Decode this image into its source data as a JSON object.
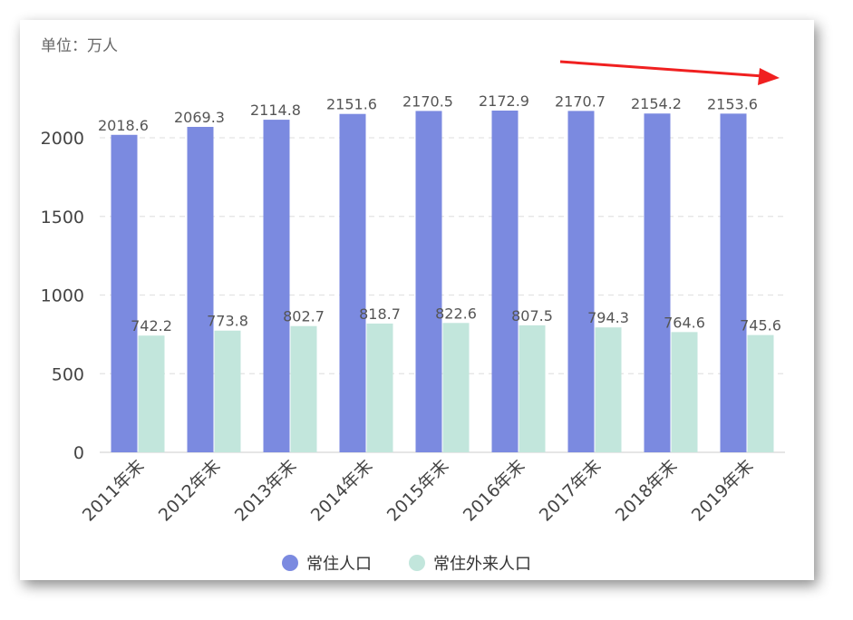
{
  "chart_data": {
    "type": "bar",
    "unit_label": "单位：万人",
    "categories": [
      "2011年末",
      "2012年末",
      "2013年末",
      "2014年末",
      "2015年末",
      "2016年末",
      "2017年末",
      "2018年末",
      "2019年末"
    ],
    "series": [
      {
        "name": "常住人口",
        "color": "#7b8ae0",
        "values": [
          2018.6,
          2069.3,
          2114.8,
          2151.6,
          2170.5,
          2172.9,
          2170.7,
          2154.2,
          2153.6
        ]
      },
      {
        "name": "常住外来人口",
        "color": "#c2e6dc",
        "values": [
          742.2,
          773.8,
          802.7,
          818.7,
          822.6,
          807.5,
          794.3,
          764.6,
          745.6
        ]
      }
    ],
    "yticks": [
      0,
      500,
      1000,
      1500,
      2000
    ],
    "ylim": [
      0,
      2250
    ],
    "grid": true,
    "legend_position": "bottom",
    "annotation": {
      "type": "arrow",
      "color": "#f02020"
    }
  }
}
